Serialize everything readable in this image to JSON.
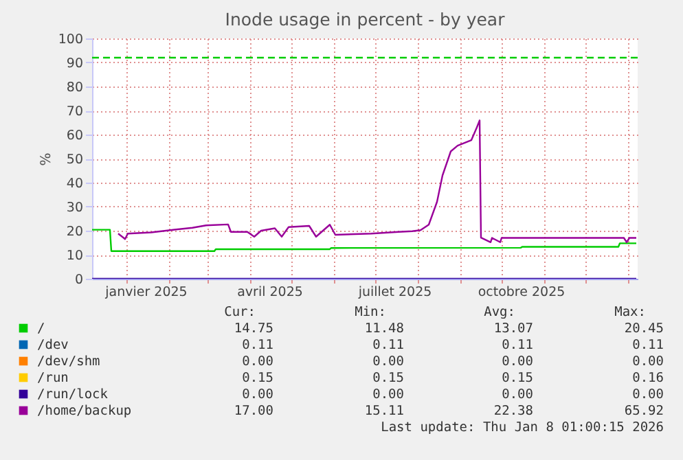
{
  "chart_data": {
    "type": "line",
    "title": "Inode usage in percent - by year",
    "ylabel": "%",
    "xlim": [
      "2024-12-07",
      "2026-01-08"
    ],
    "xticks": [
      {
        "value": "2025-01-01",
        "label": null
      },
      {
        "value": "2025-01-15",
        "label": "janvier 2025"
      },
      {
        "value": "2025-02-01",
        "label": null
      },
      {
        "value": "2025-03-01",
        "label": null
      },
      {
        "value": "2025-04-01",
        "label": null
      },
      {
        "value": "2025-04-15",
        "label": "avril 2025"
      },
      {
        "value": "2025-05-01",
        "label": null
      },
      {
        "value": "2025-06-01",
        "label": null
      },
      {
        "value": "2025-07-01",
        "label": null
      },
      {
        "value": "2025-07-15",
        "label": "juillet 2025"
      },
      {
        "value": "2025-08-01",
        "label": null
      },
      {
        "value": "2025-09-01",
        "label": null
      },
      {
        "value": "2025-10-01",
        "label": null
      },
      {
        "value": "2025-10-15",
        "label": "octobre 2025"
      },
      {
        "value": "2025-11-01",
        "label": null
      },
      {
        "value": "2025-12-01",
        "label": null
      },
      {
        "value": "2026-01-01",
        "label": null
      }
    ],
    "ylim": [
      0,
      100
    ],
    "yticks": [
      0,
      10,
      20,
      30,
      40,
      50,
      60,
      70,
      80,
      90,
      100
    ],
    "grid": true,
    "legend": "bottom",
    "line_style": "solid",
    "marker": "none",
    "series": [
      {
        "name": "/",
        "color": "#00cc00",
        "x": [
          "2024-12-07",
          "2024-12-20",
          "2024-12-21",
          "2025-03-06",
          "2025-03-07",
          "2025-05-29",
          "2025-05-30",
          "2025-10-15",
          "2025-10-16",
          "2025-12-25",
          "2025-12-26",
          "2026-01-07"
        ],
        "values": [
          20.4,
          20.4,
          11.5,
          11.5,
          12.3,
          12.3,
          12.8,
          12.9,
          13.3,
          13.3,
          14.75,
          14.75
        ]
      },
      {
        "name": "/dev",
        "color": "#0066b3"
      },
      {
        "name": "/dev/shm",
        "color": "#ff8000"
      },
      {
        "name": "/run",
        "color": "#ffcc00"
      },
      {
        "name": "/run/lock",
        "color": "#330099",
        "x": [
          "2024-12-07",
          "2026-01-07"
        ],
        "values": [
          0,
          0
        ]
      },
      {
        "name": "/home/backup",
        "color": "#990099",
        "x": [
          "2024-12-26",
          "2024-12-30",
          "2024-12-31",
          "2025-01-02",
          "2025-01-19",
          "2025-02-03",
          "2025-02-18",
          "2025-02-28",
          "2025-03-16",
          "2025-03-18",
          "2025-03-30",
          "2025-04-04",
          "2025-04-09",
          "2025-04-19",
          "2025-04-24",
          "2025-04-29",
          "2025-05-14",
          "2025-05-19",
          "2025-05-29",
          "2025-06-02",
          "2025-06-28",
          "2025-07-18",
          "2025-07-28",
          "2025-08-03",
          "2025-08-09",
          "2025-08-15",
          "2025-08-19",
          "2025-08-25",
          "2025-08-30",
          "2025-09-09",
          "2025-09-13",
          "2025-09-15",
          "2025-09-16",
          "2025-09-23",
          "2025-09-24",
          "2025-09-30",
          "2025-10-01",
          "2025-12-29",
          "2025-12-31",
          "2026-01-02",
          "2026-01-07"
        ],
        "values": [
          18.8,
          17,
          16.5,
          18.8,
          19.3,
          20.3,
          21.2,
          22.2,
          22.6,
          19.5,
          19.5,
          17.5,
          20,
          21,
          17.5,
          21.5,
          22,
          17.5,
          22.5,
          18.3,
          18.8,
          19.5,
          19.8,
          20.2,
          22.5,
          32,
          43,
          53,
          55.4,
          57.7,
          63,
          65.9,
          17.1,
          15.2,
          17,
          15.2,
          17,
          17,
          15.2,
          17,
          17
        ]
      }
    ],
    "ref_lines": [
      {
        "axis": "y",
        "value": 92,
        "label": null,
        "color": "#00cc00",
        "line_style": "dashed"
      }
    ],
    "annotations": [
      "Cur:",
      "Min:",
      "Avg:",
      "Max:",
      "14.75",
      "11.48",
      "13.07",
      "20.45",
      "0.11",
      "0.11",
      "0.11",
      "0.11",
      "0.00",
      "0.00",
      "0.00",
      "0.00",
      "0.15",
      "0.15",
      "0.15",
      "0.16",
      "0.00",
      "0.00",
      "0.00",
      "0.00",
      "17.00",
      "15.11",
      "22.38",
      "65.92",
      "Last update: Thu Jan  8 01:00:15 2026"
    ]
  }
}
